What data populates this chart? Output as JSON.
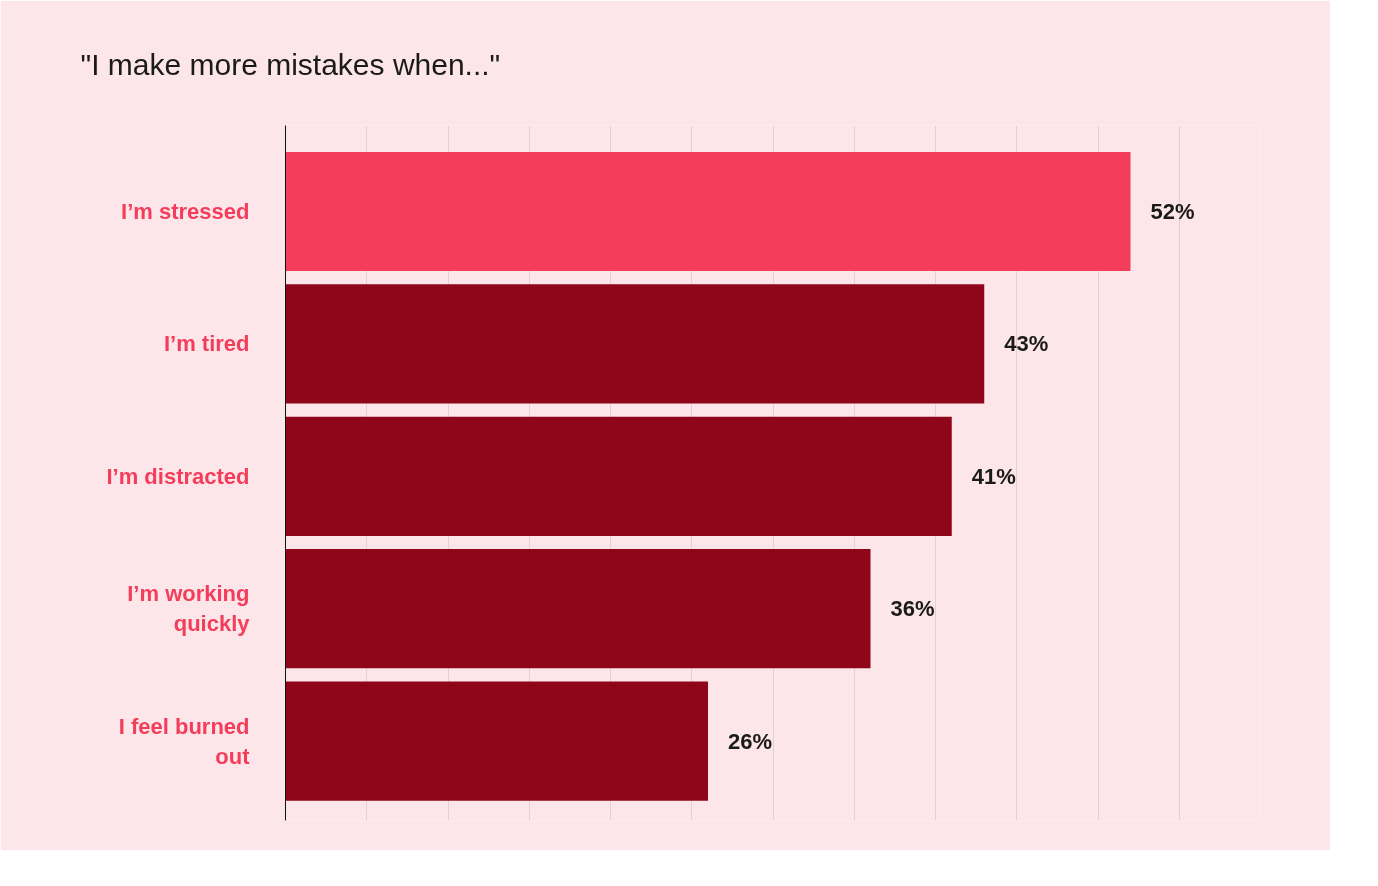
{
  "chart_data": {
    "type": "bar",
    "orientation": "horizontal",
    "title": "\"I make more mistakes when...\"",
    "categories": [
      "I’m stressed",
      "I’m tired",
      "I’m distracted",
      "I’m working quickly",
      "I feel burned out"
    ],
    "values": [
      52,
      43,
      41,
      36,
      26
    ],
    "colors": [
      "#f43d5b",
      "#8f0519",
      "#8f0519",
      "#8f0519",
      "#8f0519"
    ],
    "value_labels": [
      "52%",
      "43%",
      "41%",
      "36%",
      "26%"
    ],
    "xlim": [
      0,
      60
    ],
    "xticks": [
      {
        "value": 0,
        "label": null
      },
      {
        "value": 5,
        "label": null
      },
      {
        "value": 10,
        "label": null
      },
      {
        "value": 15,
        "label": null
      },
      {
        "value": 20,
        "label": null
      },
      {
        "value": 25,
        "label": null
      },
      {
        "value": 30,
        "label": null
      },
      {
        "value": 35,
        "label": null
      },
      {
        "value": 40,
        "label": null
      },
      {
        "value": 45,
        "label": null
      },
      {
        "value": 50,
        "label": null
      },
      {
        "value": 55,
        "label": null
      }
    ],
    "grid": "x",
    "tick_labels": "y"
  }
}
